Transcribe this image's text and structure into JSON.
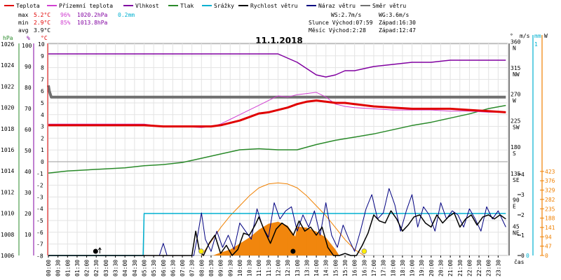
{
  "chart_data": {
    "type": "line",
    "title": "11.1.2018",
    "legend": [
      {
        "label": "Teplota",
        "color": "#e00000"
      },
      {
        "label": "Přízemní teplota",
        "color": "#d040d0"
      },
      {
        "label": "Vlhkost",
        "color": "#8000a0"
      },
      {
        "label": "Tlak",
        "color": "#2a8a2a"
      },
      {
        "label": "Srážky",
        "color": "#00b0d0"
      },
      {
        "label": "Rychlost větru",
        "color": "#000000"
      },
      {
        "label": "Náraz větru",
        "color": "#000080"
      },
      {
        "label": "Směr větru",
        "color": "#707070"
      }
    ],
    "stats": {
      "max": {
        "label": "max",
        "temp": "5.2°C",
        "hum": "96%",
        "press": "1020.2hPa",
        "rain": "0.2mm"
      },
      "min": {
        "label": "min",
        "temp": "2.9°C",
        "hum": "85%",
        "press": "1013.8hPa"
      },
      "avg": {
        "label": "avg",
        "temp": "3.9°C"
      }
    },
    "wind_info": {
      "ws": "WS:2.7m/s",
      "wg": "WG:3.6m/s"
    },
    "sun_info": {
      "rise": "Slunce Východ:07:59",
      "set": "Západ:16:30"
    },
    "moon_info": {
      "rise": "Měsíc  Východ:2:28",
      "set": "Západ:12:47"
    },
    "axes": {
      "press": {
        "unit": "hPa",
        "ticks": [
          1006,
          1008,
          1010,
          1012,
          1014,
          1016,
          1018,
          1020,
          1022,
          1024,
          1026
        ]
      },
      "hum": {
        "unit": "%",
        "ticks": [
          10,
          20,
          30,
          40,
          50,
          60,
          70,
          80,
          90,
          100
        ]
      },
      "temp": {
        "unit": "°C",
        "ticks": [
          -8,
          -7,
          -6,
          -5,
          -4,
          -3,
          -2,
          -1,
          0,
          1,
          2,
          3,
          4,
          5,
          6,
          7,
          8,
          9,
          10
        ]
      },
      "dir": {
        "unit": "°",
        "ticks": [
          {
            "v": "45",
            "d": "NE"
          },
          {
            "v": "90",
            "d": "E"
          },
          {
            "v": "135",
            "d": "SE"
          },
          {
            "v": "180",
            "d": "S"
          },
          {
            "v": "225",
            "d": "SW"
          },
          {
            "v": "270",
            "d": "W"
          },
          {
            "v": "315",
            "d": "NW"
          },
          {
            "v": "360",
            "d": "N"
          }
        ]
      },
      "wind": {
        "unit": "m/s",
        "ticks": [
          0,
          1,
          2,
          3,
          4
        ]
      },
      "rain": {
        "unit": "mm",
        "ticks": [
          0,
          1
        ]
      },
      "solar": {
        "unit": "W",
        "ticks": [
          0,
          47,
          94,
          141,
          188,
          235,
          282,
          329,
          376,
          423
        ]
      },
      "x_label": "čas",
      "x_ticks": [
        "00:00",
        "00:30",
        "01:00",
        "01:30",
        "02:00",
        "02:30",
        "03:00",
        "03:30",
        "04:00",
        "04:30",
        "05:00",
        "05:30",
        "06:00",
        "06:30",
        "07:00",
        "07:30",
        "08:00",
        "08:30",
        "09:00",
        "09:30",
        "10:00",
        "10:30",
        "11:00",
        "11:30",
        "12:00",
        "12:30",
        "13:00",
        "13:30",
        "14:00",
        "14:30",
        "15:00",
        "15:30",
        "16:00",
        "16:30",
        "17:00",
        "17:30",
        "18:00",
        "18:30",
        "19:00",
        "19:30",
        "20:00",
        "20:30",
        "21:00",
        "21:30",
        "22:00",
        "22:30",
        "23:00",
        "23:30"
      ]
    },
    "series": {
      "temperature": {
        "x": [
          0,
          1,
          2,
          3,
          4,
          5,
          6,
          7,
          8,
          8.5,
          9,
          10,
          10.5,
          11,
          11.5,
          12,
          12.5,
          13,
          13.5,
          14,
          14.5,
          15,
          15.5,
          16,
          17,
          18,
          19,
          20,
          21,
          22,
          23,
          23.9
        ],
        "y": [
          3.1,
          3.1,
          3.1,
          3.1,
          3.1,
          3.1,
          3.0,
          3.0,
          3.0,
          3.0,
          3.1,
          3.5,
          3.8,
          4.1,
          4.2,
          4.4,
          4.6,
          4.9,
          5.1,
          5.2,
          5.1,
          5.0,
          5.0,
          4.9,
          4.7,
          4.6,
          4.5,
          4.5,
          4.5,
          4.4,
          4.3,
          4.2
        ]
      },
      "ground_temperature": {
        "x": [
          0,
          1,
          2,
          3,
          4,
          5,
          6,
          7,
          8,
          8.5,
          9,
          9.5,
          10,
          10.5,
          11,
          11.5,
          12,
          12.5,
          13,
          13.5,
          14,
          14.5,
          15,
          15.5,
          16,
          17,
          18,
          19,
          20,
          21,
          22,
          23,
          23.9
        ],
        "y": [
          3.2,
          3.2,
          3.2,
          3.2,
          3.2,
          3.2,
          3.0,
          3.0,
          2.9,
          3.0,
          3.2,
          3.6,
          4.0,
          4.4,
          4.8,
          5.2,
          5.6,
          5.5,
          5.7,
          5.8,
          5.9,
          5.5,
          4.9,
          4.7,
          4.6,
          4.5,
          4.4,
          4.4,
          4.4,
          4.3,
          4.3,
          4.2,
          4.2
        ]
      },
      "humidity": {
        "x": [
          0,
          1,
          2,
          3,
          4,
          5,
          6,
          7,
          8,
          9,
          10,
          11,
          12,
          12.5,
          13,
          13.5,
          14,
          14.5,
          15,
          15.5,
          16,
          16.5,
          17,
          18,
          19,
          20,
          21,
          22,
          23,
          23.9
        ],
        "y": [
          96,
          96,
          96,
          96,
          96,
          96,
          96,
          96,
          96,
          96,
          96,
          96,
          96,
          94,
          92,
          89,
          86,
          85,
          86,
          88,
          88,
          89,
          90,
          91,
          92,
          92,
          93,
          93,
          93,
          93
        ]
      },
      "pressure": {
        "x": [
          0,
          1,
          2,
          3,
          4,
          5,
          6,
          7,
          8,
          9,
          10,
          11,
          12,
          13,
          14,
          15,
          16,
          17,
          18,
          19,
          20,
          21,
          22,
          23,
          23.9
        ],
        "y": [
          1013.8,
          1014.0,
          1014.1,
          1014.2,
          1014.3,
          1014.5,
          1014.6,
          1014.8,
          1015.2,
          1015.6,
          1016.0,
          1016.1,
          1016.0,
          1016.0,
          1016.5,
          1016.9,
          1017.2,
          1017.5,
          1017.9,
          1018.3,
          1018.6,
          1019.0,
          1019.4,
          1019.9,
          1020.2
        ]
      },
      "precipitation": {
        "x": [
          0,
          4.95,
          5.0,
          23.9
        ],
        "y": [
          0,
          0,
          0.2,
          0.2
        ]
      },
      "wind_speed": {
        "x": [
          0,
          7.5,
          7.7,
          7.9,
          8.1,
          8.4,
          8.7,
          9.0,
          9.3,
          9.6,
          9.9,
          10.2,
          10.5,
          10.8,
          11.0,
          11.3,
          11.6,
          11.9,
          12.2,
          12.5,
          12.8,
          13.1,
          13.4,
          13.7,
          14.0,
          14.3,
          14.6,
          14.9,
          15.2,
          15.5,
          15.8,
          16.1,
          16.4,
          16.7,
          17.0,
          17.3,
          17.6,
          17.9,
          18.2,
          18.5,
          18.8,
          19.1,
          19.4,
          19.7,
          20.0,
          20.3,
          20.6,
          20.9,
          21.2,
          21.5,
          21.8,
          22.1,
          22.4,
          22.7,
          23.0,
          23.3,
          23.6,
          23.9
        ],
        "y": [
          0,
          0,
          1.2,
          0.2,
          0.0,
          0.6,
          1.0,
          0.1,
          0.5,
          0.0,
          0.3,
          1.1,
          1.0,
          1.5,
          1.9,
          1.2,
          0.6,
          1.3,
          1.6,
          1.4,
          1.0,
          1.7,
          1.2,
          1.4,
          1.0,
          1.4,
          0.4,
          0.0,
          0.0,
          0.1,
          0.0,
          0.0,
          0.5,
          1.1,
          2.0,
          1.7,
          1.6,
          2.2,
          1.8,
          1.2,
          1.5,
          1.9,
          2.0,
          1.6,
          1.4,
          2.0,
          1.6,
          1.9,
          2.1,
          1.4,
          1.8,
          2.0,
          1.5,
          1.9,
          2.0,
          1.8,
          2.0,
          1.8
        ]
      },
      "wind_gust": {
        "x": [
          0,
          5.8,
          6.0,
          6.2,
          7.6,
          7.8,
          8.0,
          8.2,
          8.5,
          8.8,
          9.1,
          9.4,
          9.7,
          10.0,
          10.3,
          10.6,
          10.9,
          11.2,
          11.5,
          11.8,
          12.1,
          12.4,
          12.7,
          13.0,
          13.3,
          13.6,
          13.9,
          14.2,
          14.5,
          14.8,
          15.1,
          15.4,
          15.7,
          16.0,
          16.3,
          16.6,
          16.9,
          17.2,
          17.5,
          17.8,
          18.1,
          18.4,
          18.7,
          19.0,
          19.3,
          19.6,
          19.9,
          20.2,
          20.5,
          20.8,
          21.1,
          21.4,
          21.7,
          22.0,
          22.3,
          22.6,
          22.9,
          23.2,
          23.5,
          23.9
        ],
        "y": [
          0,
          0,
          0.6,
          0,
          0,
          1.0,
          2.1,
          0.8,
          0.2,
          1.2,
          0.4,
          1.0,
          0.3,
          1.6,
          1.2,
          0.8,
          2.3,
          1.4,
          0.9,
          2.6,
          1.8,
          2.2,
          2.4,
          1.2,
          2.0,
          1.4,
          2.2,
          1.0,
          2.6,
          1.0,
          0.4,
          1.5,
          0.8,
          0.2,
          1.2,
          2.3,
          3.0,
          1.8,
          2.1,
          3.3,
          2.5,
          1.2,
          2.2,
          3.0,
          1.4,
          2.4,
          2.0,
          1.2,
          2.6,
          1.8,
          2.2,
          2.0,
          1.4,
          2.3,
          1.8,
          1.2,
          2.4,
          1.8,
          2.2,
          1.4
        ]
      },
      "wind_direction_deg": {
        "x": [
          0,
          0.05,
          0.15,
          23.9
        ],
        "y": [
          290,
          280,
          270,
          270
        ]
      },
      "solar_radiation": {
        "x": [
          0,
          8.6,
          9.0,
          9.5,
          10.0,
          10.5,
          11.0,
          11.5,
          12.0,
          12.5,
          12.9,
          13.0,
          13.5,
          14.0,
          14.5,
          15.0,
          15.2,
          23.9
        ],
        "y": [
          0,
          0,
          15,
          30,
          60,
          90,
          130,
          160,
          170,
          150,
          95,
          145,
          140,
          120,
          90,
          30,
          0,
          0
        ]
      },
      "solar_theoretical": {
        "x": [
          7.99,
          8.5,
          9,
          9.5,
          10,
          10.5,
          11,
          11.5,
          12,
          12.5,
          13,
          13.5,
          14,
          14.5,
          15,
          15.5,
          16,
          16.5
        ],
        "y": [
          0,
          70,
          140,
          200,
          250,
          300,
          340,
          360,
          365,
          360,
          340,
          300,
          250,
          200,
          140,
          80,
          30,
          0
        ]
      }
    },
    "markers": {
      "moon_rise": "2:28",
      "moon_set": "12:47",
      "sun_rise": "07:59",
      "sun_set": "16:30"
    }
  }
}
